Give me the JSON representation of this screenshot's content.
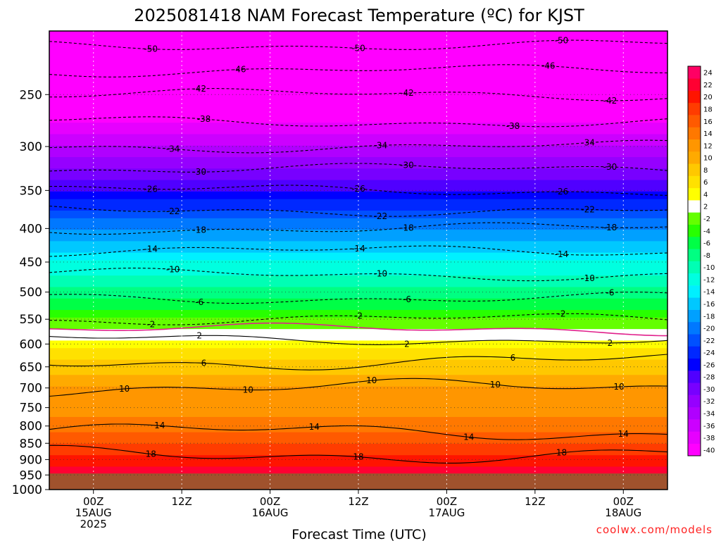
{
  "chart_data": {
    "type": "heatmap",
    "title": "2025081418 NAM Forecast Temperature (ºC) for KJST",
    "xlabel": "Forecast Time (UTC)",
    "ylabel": "",
    "y_scale": "log",
    "y_reversed": true,
    "y_range": [
      200,
      1000
    ],
    "x_range_hours": [
      -5,
      65
    ],
    "y_ticks": [
      {
        "value": 250,
        "label": "250"
      },
      {
        "value": 300,
        "label": "300"
      },
      {
        "value": 350,
        "label": "350"
      },
      {
        "value": 400,
        "label": "400"
      },
      {
        "value": 450,
        "label": "450"
      },
      {
        "value": 500,
        "label": "500"
      },
      {
        "value": 550,
        "label": "550"
      },
      {
        "value": 600,
        "label": "600"
      },
      {
        "value": 650,
        "label": "650"
      },
      {
        "value": 700,
        "label": "700"
      },
      {
        "value": 750,
        "label": "750"
      },
      {
        "value": 800,
        "label": "800"
      },
      {
        "value": 850,
        "label": "850"
      },
      {
        "value": 900,
        "label": "900"
      },
      {
        "value": 950,
        "label": "950"
      },
      {
        "value": 1000,
        "label": "1000"
      }
    ],
    "x_ticks": [
      {
        "hour": 0,
        "lines": [
          "00Z",
          "15AUG",
          "2025"
        ]
      },
      {
        "hour": 10,
        "lines": [
          "12Z"
        ]
      },
      {
        "hour": 20,
        "lines": [
          "00Z",
          "16AUG"
        ]
      },
      {
        "hour": 30,
        "lines": [
          "12Z"
        ]
      },
      {
        "hour": 40,
        "lines": [
          "00Z",
          "17AUG"
        ]
      },
      {
        "hour": 50,
        "lines": [
          "12Z"
        ]
      },
      {
        "hour": 60,
        "lines": [
          "00Z",
          "18AUG"
        ]
      }
    ],
    "ground_level_hpa": 945,
    "ground_color": "#a0522d",
    "temperature_profile": [
      {
        "p": 200,
        "t": -52
      },
      {
        "p": 250,
        "t": -42
      },
      {
        "p": 300,
        "t": -34
      },
      {
        "p": 350,
        "t": -26
      },
      {
        "p": 400,
        "t": -18
      },
      {
        "p": 450,
        "t": -12
      },
      {
        "p": 500,
        "t": -7
      },
      {
        "p": 550,
        "t": -2
      },
      {
        "p": 600,
        "t": 3
      },
      {
        "p": 650,
        "t": 7
      },
      {
        "p": 700,
        "t": 10
      },
      {
        "p": 750,
        "t": 11
      },
      {
        "p": 800,
        "t": 13
      },
      {
        "p": 850,
        "t": 16
      },
      {
        "p": 900,
        "t": 19
      },
      {
        "p": 950,
        "t": 22
      }
    ],
    "contours": [
      {
        "t": -50,
        "dashed": true,
        "labels": [
          "-50",
          "-50",
          "-50"
        ]
      },
      {
        "t": -46,
        "dashed": true,
        "labels": [
          "-46",
          "-46"
        ]
      },
      {
        "t": -42,
        "dashed": true,
        "labels": [
          "-42",
          "-42",
          "-42"
        ]
      },
      {
        "t": -38,
        "dashed": true,
        "labels": [
          "-38",
          "-38"
        ]
      },
      {
        "t": -34,
        "dashed": true,
        "labels": [
          "-34",
          "-34",
          "-34"
        ]
      },
      {
        "t": -30,
        "dashed": true,
        "labels": [
          "-30",
          "-30",
          "-30"
        ]
      },
      {
        "t": -26,
        "dashed": true,
        "labels": [
          "-26",
          "-26",
          "-26"
        ]
      },
      {
        "t": -22,
        "dashed": true,
        "labels": [
          "-22",
          "-22",
          "-22"
        ]
      },
      {
        "t": -18,
        "dashed": true,
        "labels": [
          "-18",
          "-18",
          "-18"
        ]
      },
      {
        "t": -14,
        "dashed": true,
        "labels": [
          "-14",
          "-14",
          "-14"
        ]
      },
      {
        "t": -10,
        "dashed": true,
        "labels": [
          "-10",
          "-10",
          "-10"
        ]
      },
      {
        "t": -6,
        "dashed": true,
        "labels": [
          "-6",
          "-6",
          "-6"
        ]
      },
      {
        "t": -2,
        "dashed": true,
        "labels": [
          "-2",
          "-2",
          "-2"
        ]
      },
      {
        "t": 0,
        "dashed": false,
        "color": "#e0208c",
        "labels": []
      },
      {
        "t": 2,
        "dashed": false,
        "labels": [
          "2",
          "2",
          "2"
        ]
      },
      {
        "t": 6,
        "dashed": false,
        "labels": [
          "6",
          "6"
        ]
      },
      {
        "t": 10,
        "dashed": false,
        "labels": [
          "10",
          "10",
          "10",
          "10",
          "10"
        ]
      },
      {
        "t": 14,
        "dashed": false,
        "labels": [
          "14",
          "14",
          "14",
          "14"
        ]
      },
      {
        "t": 18,
        "dashed": false,
        "labels": [
          "18",
          "18",
          "18"
        ]
      }
    ],
    "colorbar": [
      {
        "label": "-40",
        "color": "#ff00ff"
      },
      {
        "label": "-38",
        "color": "#e600ff"
      },
      {
        "label": "-36",
        "color": "#cc00ff"
      },
      {
        "label": "-34",
        "color": "#b000ff"
      },
      {
        "label": "-32",
        "color": "#9600ff"
      },
      {
        "label": "-30",
        "color": "#7800ff"
      },
      {
        "label": "-28",
        "color": "#5000ff"
      },
      {
        "label": "-26",
        "color": "#0000ff"
      },
      {
        "label": "-24",
        "color": "#0028ff"
      },
      {
        "label": "-22",
        "color": "#0050ff"
      },
      {
        "label": "-20",
        "color": "#0078ff"
      },
      {
        "label": "-18",
        "color": "#00a0ff"
      },
      {
        "label": "-16",
        "color": "#00c8ff"
      },
      {
        "label": "-14",
        "color": "#00f0ff"
      },
      {
        "label": "-12",
        "color": "#00ffe0"
      },
      {
        "label": "-10",
        "color": "#00ffb4"
      },
      {
        "label": "-8",
        "color": "#00ff82"
      },
      {
        "label": "-6",
        "color": "#00ff46"
      },
      {
        "label": "-4",
        "color": "#28ff00"
      },
      {
        "label": "-2",
        "color": "#64ff00"
      },
      {
        "label": "2",
        "color": "#ffffff"
      },
      {
        "label": "4",
        "color": "#ffff00"
      },
      {
        "label": "6",
        "color": "#ffe100"
      },
      {
        "label": "8",
        "color": "#ffc800"
      },
      {
        "label": "10",
        "color": "#ffaa00"
      },
      {
        "label": "12",
        "color": "#ff9600"
      },
      {
        "label": "14",
        "color": "#ff7800"
      },
      {
        "label": "16",
        "color": "#ff5a00"
      },
      {
        "label": "18",
        "color": "#ff3c00"
      },
      {
        "label": "20",
        "color": "#ff1400"
      },
      {
        "label": "22",
        "color": "#ff0032"
      },
      {
        "label": "24",
        "color": "#ff0064"
      }
    ],
    "grid": true,
    "legend": "right"
  },
  "watermark": "coolwx.com/models"
}
